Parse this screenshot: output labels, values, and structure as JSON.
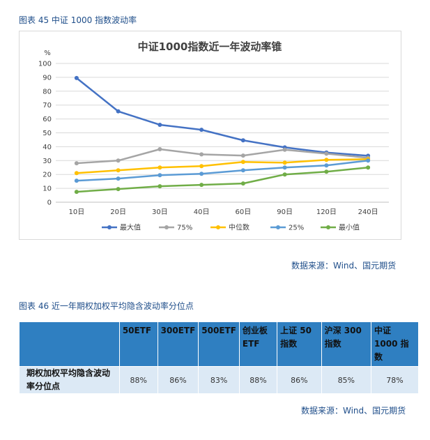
{
  "fig45": {
    "caption": "图表 45  中证 1000 指数波动率",
    "source": "数据来源：Wind、国元期货"
  },
  "chart_data": {
    "type": "line",
    "title": "中证1000指数近一年波动率锥",
    "ylabel": "%",
    "ylim": [
      0,
      100
    ],
    "yticks": [
      0,
      10,
      20,
      30,
      40,
      50,
      60,
      70,
      80,
      90,
      100
    ],
    "categories": [
      "10日",
      "20日",
      "30日",
      "40日",
      "60日",
      "90日",
      "120日",
      "240日"
    ],
    "legend_position": "bottom",
    "grid": true,
    "series": [
      {
        "name": "最大值",
        "color": "#4472c4",
        "values": [
          89.5,
          65.5,
          55.8,
          52.2,
          44.6,
          39.5,
          35.8,
          33.5
        ]
      },
      {
        "name": "75%",
        "color": "#a5a5a5",
        "values": [
          28.1,
          30.0,
          38.2,
          34.5,
          33.6,
          37.8,
          35.0,
          32.0
        ]
      },
      {
        "name": "中位数",
        "color": "#ffc000",
        "values": [
          21.0,
          23.0,
          25.0,
          26.0,
          29.0,
          28.5,
          30.5,
          31.0
        ]
      },
      {
        "name": "25%",
        "color": "#5b9bd5",
        "values": [
          15.5,
          17.0,
          19.5,
          20.5,
          23.0,
          25.0,
          26.5,
          30.0
        ]
      },
      {
        "name": "最小值",
        "color": "#70ad47",
        "values": [
          7.5,
          9.5,
          11.5,
          12.5,
          13.5,
          20.0,
          22.0,
          25.0
        ]
      }
    ]
  },
  "fig46": {
    "caption": "图表 46  近一年期权加权平均隐含波动率分位点",
    "source": "数据来源：Wind、国元期货",
    "headers": [
      "50ETF",
      "300ETF",
      "500ETF",
      "创业板ETF",
      "上证 50 指数",
      "沪深 300 指数",
      "中证 1000 指数"
    ],
    "row_label": "期权加权平均隐含波动率分位点",
    "values": [
      "88%",
      "86%",
      "83%",
      "88%",
      "86%",
      "85%",
      "78%"
    ]
  }
}
